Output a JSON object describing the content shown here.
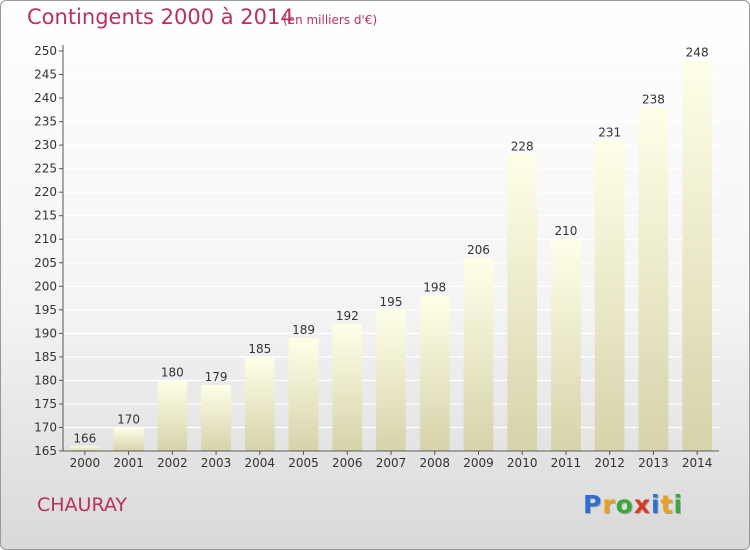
{
  "title": "Contingents 2000 à 2014",
  "subtitle": "(en milliers d'€)",
  "place": "CHAURAY",
  "logo": {
    "letters": [
      "P",
      "r",
      "o",
      "x",
      "i",
      "t",
      "i"
    ],
    "colors": [
      "#2f6fd0",
      "#e8a020",
      "#3da83a",
      "#d83a2a",
      "#2f6fd0",
      "#e8a020",
      "#3da83a"
    ]
  },
  "colors": {
    "text_accent": "#b8305e",
    "bar_top": "#ffffe8",
    "bar_bottom": "#d6d3aa",
    "axis": "#555555",
    "grid": "#ffffff"
  },
  "chart_data": {
    "type": "bar",
    "categories": [
      "2000",
      "2001",
      "2002",
      "2003",
      "2004",
      "2005",
      "2006",
      "2007",
      "2008",
      "2009",
      "2010",
      "2011",
      "2012",
      "2013",
      "2014"
    ],
    "values": [
      166,
      170,
      180,
      179,
      185,
      189,
      192,
      195,
      198,
      206,
      228,
      210,
      231,
      238,
      248
    ],
    "title": "Contingents 2000 à 2014",
    "xlabel": "",
    "ylabel": "",
    "ylim": [
      165,
      250
    ],
    "yticks": [
      165,
      170,
      175,
      180,
      185,
      190,
      195,
      200,
      205,
      210,
      215,
      220,
      225,
      230,
      235,
      240,
      245,
      250
    ],
    "grid": true,
    "legend": "none"
  }
}
